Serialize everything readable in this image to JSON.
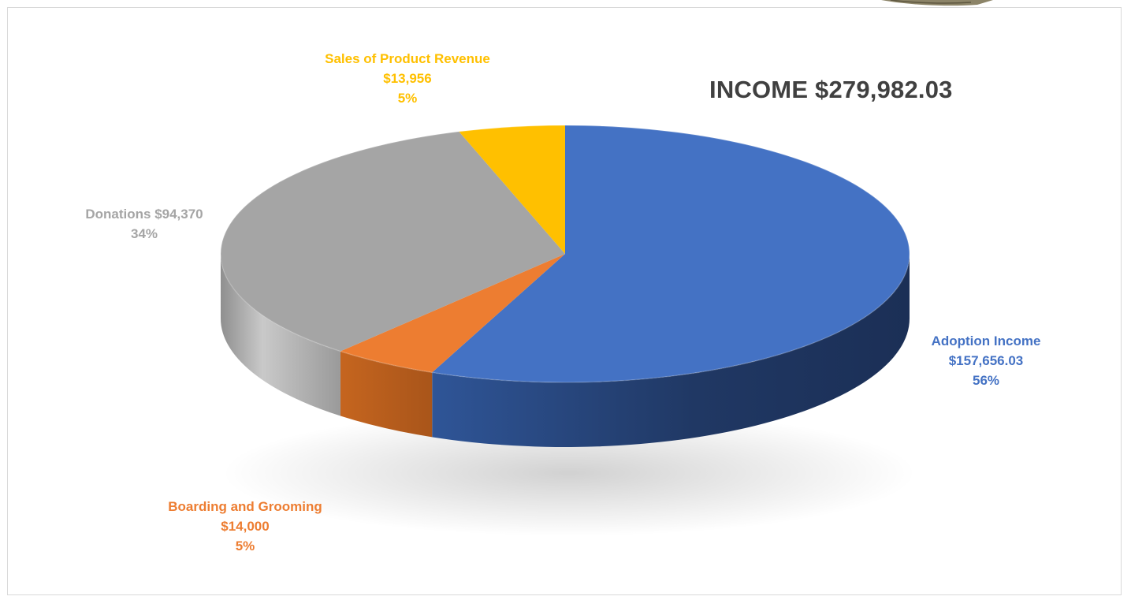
{
  "chart_data": {
    "type": "pie",
    "style": "3d-tilted",
    "title": "INCOME $279,982.03",
    "slices": [
      {
        "key": "adoption",
        "name": "Adoption Income",
        "value": 157656.03,
        "value_label": "$157,656.03",
        "percent": 56,
        "percent_label": "56%",
        "color": "#4472C4"
      },
      {
        "key": "boarding",
        "name": "Boarding and Grooming",
        "value": 14000,
        "value_label": "$14,000",
        "percent": 5,
        "percent_label": "5%",
        "color": "#ED7D31"
      },
      {
        "key": "donations",
        "name": "Donations",
        "value": 94370,
        "value_label": "$94,370",
        "percent": 34,
        "percent_label": "34%",
        "color": "#A5A5A5"
      },
      {
        "key": "sales",
        "name": "Sales of Product Revenue",
        "value": 13956,
        "value_label": "$13,956",
        "percent": 5,
        "percent_label": "5%",
        "color": "#FFC000"
      }
    ],
    "labels": {
      "adoption": {
        "line1": "Adoption Income",
        "line2": "$157,656.03",
        "line3": "56%",
        "color": "#4472C4"
      },
      "boarding": {
        "line1": "Boarding and Grooming",
        "line2": "$14,000",
        "line3": "5%",
        "color": "#ED7D31"
      },
      "donations": {
        "line1": "Donations $94,370",
        "line2": "34%",
        "color": "#A5A5A5"
      },
      "sales": {
        "line1": "Sales of Product Revenue",
        "line2": "$13,956",
        "line3": "5%",
        "color": "#FFC000"
      }
    }
  }
}
